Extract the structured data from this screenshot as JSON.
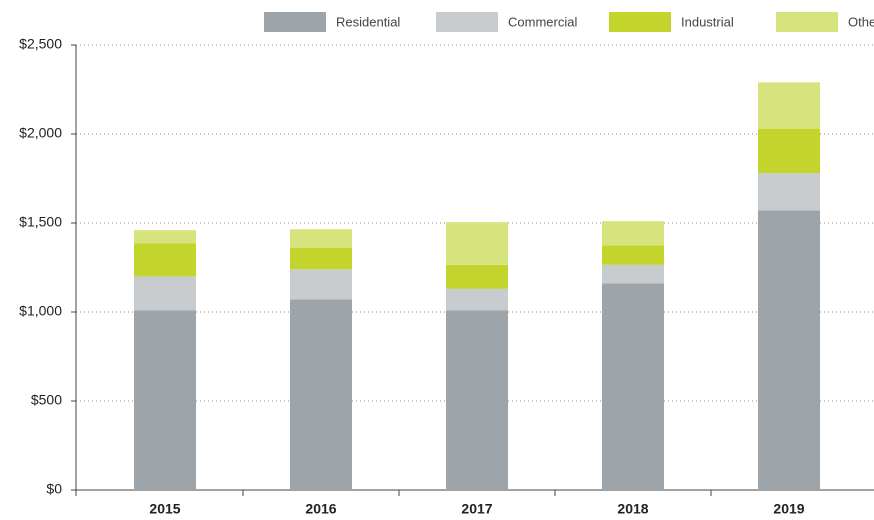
{
  "chart_data": {
    "type": "stacked_bar",
    "categories": [
      "2015",
      "2016",
      "2017",
      "2018",
      "2019"
    ],
    "series": [
      {
        "name": "Residential",
        "color": "#9ea5aa",
        "values": [
          1010,
          1070,
          1010,
          1160,
          1570
        ]
      },
      {
        "name": "Commercial",
        "color": "#c8cccf",
        "values": [
          190,
          170,
          120,
          105,
          210
        ]
      },
      {
        "name": "Industrial",
        "color": "#c3d52c",
        "values": [
          185,
          120,
          135,
          110,
          250
        ]
      },
      {
        "name": "Other",
        "color": "#d7e47e",
        "values": [
          75,
          105,
          240,
          135,
          260
        ]
      }
    ],
    "ylim": [
      0,
      2500
    ],
    "yticks": [
      {
        "value": 0,
        "label": "$0"
      },
      {
        "value": 500,
        "label": "$500"
      },
      {
        "value": 1000,
        "label": "$1,000"
      },
      {
        "value": 1500,
        "label": "$1,500"
      },
      {
        "value": 2000,
        "label": "$2,000"
      },
      {
        "value": 2500,
        "label": "$2,500"
      }
    ],
    "grid": true,
    "legend": "top"
  }
}
